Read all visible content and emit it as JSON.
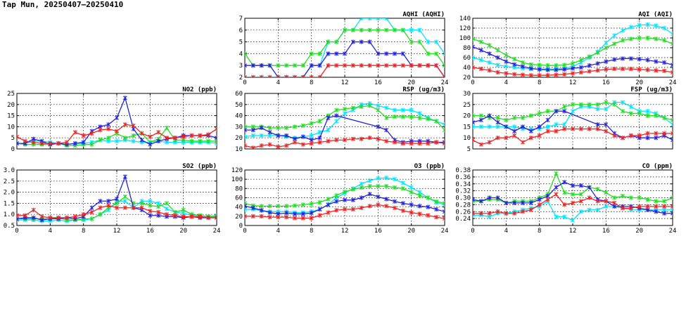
{
  "title": "Tap Mun, 20250407–20250410",
  "colors": {
    "cyan": "#00e5ff",
    "green": "#22dd22",
    "blue": "#2222dd",
    "red": "#ee2222"
  },
  "chart_data": [
    {
      "id": "aqhi",
      "type": "line",
      "title": "AQHI (AQHI)",
      "xlim": [
        0,
        24
      ],
      "xticks": [
        0,
        4,
        8,
        12,
        16,
        20,
        24
      ],
      "ylim": [
        2,
        7
      ],
      "yticks": [
        2,
        3,
        4,
        5,
        6,
        7
      ],
      "yfmt": 0,
      "show_xticks": true,
      "series": [
        {
          "name": "cyan",
          "values": [
            2,
            2,
            2,
            2,
            2,
            2,
            2,
            2,
            3,
            3,
            5,
            5,
            6,
            6,
            7,
            7,
            7,
            7,
            6,
            6,
            6,
            6,
            5,
            5,
            4
          ]
        },
        {
          "name": "green",
          "values": [
            4,
            3,
            3,
            3,
            3,
            3,
            3,
            3,
            4,
            4,
            5,
            5,
            6,
            6,
            6,
            6,
            6,
            6,
            6,
            6,
            5,
            5,
            4,
            4,
            3
          ]
        },
        {
          "name": "blue",
          "values": [
            3,
            3,
            3,
            3,
            2,
            2,
            2,
            2,
            3,
            3,
            4,
            4,
            4,
            5,
            5,
            5,
            4,
            4,
            4,
            4,
            3,
            3,
            3,
            3,
            2
          ]
        },
        {
          "name": "red",
          "values": [
            2,
            2,
            2,
            2,
            2,
            2,
            2,
            2,
            2,
            2,
            3,
            3,
            3,
            3,
            3,
            3,
            3,
            3,
            3,
            3,
            3,
            3,
            3,
            3,
            2
          ]
        }
      ]
    },
    {
      "id": "aqi",
      "type": "line",
      "title": "AQI (AQI)",
      "xlim": [
        0,
        24
      ],
      "xticks": [
        0,
        4,
        8,
        12,
        16,
        20,
        24
      ],
      "ylim": [
        20,
        140
      ],
      "yticks": [
        20,
        40,
        60,
        80,
        100,
        120,
        140
      ],
      "yfmt": 0,
      "show_xticks": true,
      "series": [
        {
          "name": "cyan",
          "values": [
            60,
            55,
            50,
            45,
            42,
            40,
            38,
            37,
            37,
            37,
            37,
            38,
            42,
            50,
            60,
            72,
            90,
            105,
            115,
            122,
            126,
            127,
            125,
            120,
            108
          ]
        },
        {
          "name": "green",
          "values": [
            98,
            92,
            85,
            75,
            65,
            57,
            50,
            46,
            45,
            44,
            44,
            45,
            48,
            55,
            62,
            70,
            80,
            88,
            95,
            98,
            100,
            100,
            98,
            95,
            88
          ]
        },
        {
          "name": "blue",
          "values": [
            82,
            75,
            68,
            60,
            52,
            46,
            42,
            38,
            36,
            35,
            35,
            36,
            38,
            40,
            44,
            48,
            52,
            56,
            58,
            58,
            57,
            55,
            52,
            50,
            45
          ]
        },
        {
          "name": "red",
          "values": [
            40,
            37,
            34,
            30,
            28,
            26,
            25,
            24,
            24,
            24,
            25,
            26,
            28,
            30,
            32,
            34,
            36,
            37,
            37,
            37,
            36,
            35,
            34,
            33,
            30
          ]
        }
      ]
    },
    {
      "id": "no2",
      "type": "line",
      "title": "NO2 (ppb)",
      "xlim": [
        0,
        24
      ],
      "xticks": [
        0,
        4,
        8,
        12,
        16,
        20,
        24
      ],
      "ylim": [
        0,
        25
      ],
      "yticks": [
        0,
        5,
        10,
        15,
        20,
        25
      ],
      "yfmt": 0,
      "show_xticks": false,
      "series": [
        {
          "name": "cyan",
          "values": [
            2.5,
            2.5,
            3.5,
            3.5,
            3,
            2.5,
            2,
            2.5,
            2.5,
            3,
            4,
            3.5,
            3.5,
            4,
            3.5,
            3,
            3,
            3.5,
            3,
            3,
            3,
            3,
            3,
            3,
            2.5
          ]
        },
        {
          "name": "green",
          "values": [
            2.5,
            2,
            2,
            2,
            2,
            2.5,
            1.5,
            1.5,
            2,
            2,
            4,
            5,
            7,
            5,
            6,
            7,
            3,
            4.5,
            9.5,
            4,
            4,
            3.5,
            3.5,
            3.5,
            3.5
          ]
        },
        {
          "name": "blue",
          "values": [
            2.5,
            2.5,
            4.5,
            3.5,
            2,
            2.5,
            2,
            2.5,
            3,
            8,
            10,
            11,
            14,
            23,
            9,
            4,
            2,
            3.5,
            4.5,
            5,
            6,
            6,
            6,
            6,
            5
          ]
        },
        {
          "name": "red",
          "values": [
            5.5,
            3.5,
            3,
            2.5,
            2.5,
            2.5,
            3,
            7.5,
            6,
            7,
            8.5,
            9,
            8,
            11,
            10.5,
            7,
            5.5,
            7.5,
            5,
            5,
            5.5,
            6,
            6,
            6.5,
            9
          ]
        }
      ]
    },
    {
      "id": "rsp",
      "type": "line",
      "title": "RSP (ug/m3)",
      "xlim": [
        0,
        24
      ],
      "xticks": [
        0,
        4,
        8,
        12,
        16,
        20,
        24
      ],
      "ylim": [
        10,
        60
      ],
      "yticks": [
        10,
        20,
        30,
        40,
        50,
        60
      ],
      "yfmt": 0,
      "show_xticks": false,
      "series": [
        {
          "name": "cyan",
          "values": [
            21,
            22,
            22,
            22,
            22,
            21,
            20,
            21,
            22,
            25,
            27,
            35,
            42,
            45,
            50,
            51,
            49,
            47,
            45,
            45,
            45,
            42,
            38,
            35,
            32
          ]
        },
        {
          "name": "green",
          "values": [
            30,
            30,
            30,
            29,
            29,
            29,
            30,
            31,
            33,
            35,
            40,
            45,
            46,
            47,
            48,
            49,
            45,
            38,
            39,
            39,
            39,
            38,
            37,
            35,
            27
          ]
        },
        {
          "name": "blue",
          "values": [
            27,
            27,
            29,
            25,
            22,
            22,
            19,
            21,
            18,
            20,
            38,
            40,
            null,
            null,
            null,
            null,
            30,
            27,
            18,
            16,
            17,
            17,
            17,
            16,
            16
          ]
        },
        {
          "name": "red",
          "values": [
            13,
            11,
            13,
            14,
            12,
            13,
            16,
            14,
            15,
            16,
            17,
            18,
            18,
            19,
            19,
            20,
            19,
            17,
            16,
            15,
            15,
            15,
            15,
            16,
            15
          ]
        }
      ]
    },
    {
      "id": "fsp",
      "type": "line",
      "title": "FSP (ug/m3)",
      "xlim": [
        0,
        24
      ],
      "xticks": [
        0,
        4,
        8,
        12,
        16,
        20,
        24
      ],
      "ylim": [
        5,
        30
      ],
      "yticks": [
        5,
        10,
        15,
        20,
        25,
        30
      ],
      "yfmt": 0,
      "show_xticks": false,
      "series": [
        {
          "name": "cyan",
          "values": [
            15,
            15,
            15,
            15,
            15,
            15,
            14,
            14,
            14,
            15,
            16,
            16,
            22,
            24,
            24,
            23,
            23,
            26,
            26,
            24,
            22,
            22,
            21,
            19,
            16
          ]
        },
        {
          "name": "green",
          "values": [
            20,
            20,
            19,
            19,
            18,
            19,
            19,
            20,
            21,
            22,
            22,
            24,
            25,
            25,
            25,
            25,
            26,
            25,
            22,
            21,
            21,
            20,
            20,
            19,
            18
          ]
        },
        {
          "name": "blue",
          "values": [
            17,
            18,
            20,
            17,
            15,
            13,
            15,
            13,
            15,
            18,
            22,
            22,
            null,
            null,
            null,
            16,
            16,
            12,
            10,
            11,
            10,
            10,
            10,
            11,
            9
          ]
        },
        {
          "name": "red",
          "values": [
            9,
            7,
            8,
            10,
            10,
            11,
            8,
            10,
            11,
            13,
            13,
            14,
            14,
            14,
            14,
            14,
            13,
            11,
            10,
            11,
            11,
            12,
            12,
            12,
            12
          ]
        }
      ]
    },
    {
      "id": "so2",
      "type": "line",
      "title": "SO2 (ppb)",
      "xlim": [
        0,
        24
      ],
      "xticks": [
        0,
        4,
        8,
        12,
        16,
        20,
        24
      ],
      "ylim": [
        0.5,
        3.0
      ],
      "yticks": [
        0.5,
        1.0,
        1.5,
        2.0,
        2.5,
        3.0
      ],
      "yfmt": 1,
      "show_xticks": true,
      "series": [
        {
          "name": "cyan",
          "values": [
            0.75,
            0.75,
            0.75,
            0.7,
            0.7,
            0.75,
            0.7,
            0.75,
            0.75,
            0.8,
            1.0,
            1.2,
            1.6,
            1.6,
            1.3,
            1.6,
            1.6,
            1.5,
            1.25,
            1.1,
            1.05,
            0.95,
            0.95,
            0.9,
            0.95
          ]
        },
        {
          "name": "green",
          "values": [
            0.8,
            0.8,
            0.8,
            0.8,
            0.8,
            0.85,
            0.75,
            0.75,
            0.8,
            0.8,
            1.0,
            1.3,
            1.5,
            1.8,
            1.5,
            1.5,
            1.4,
            1.35,
            1.5,
            1.1,
            1.2,
            1.0,
            0.95,
            0.9,
            0.9
          ]
        },
        {
          "name": "blue",
          "values": [
            0.8,
            0.85,
            0.85,
            0.75,
            0.8,
            0.8,
            0.85,
            0.8,
            0.9,
            1.3,
            1.6,
            1.6,
            1.7,
            2.7,
            1.3,
            1.2,
            0.95,
            0.95,
            0.9,
            0.9,
            0.85,
            0.9,
            0.85,
            0.85,
            0.85
          ]
        },
        {
          "name": "red",
          "values": [
            0.95,
            0.95,
            1.2,
            0.9,
            0.85,
            0.85,
            0.85,
            0.9,
            1.0,
            1.1,
            1.3,
            1.4,
            1.3,
            1.3,
            1.3,
            1.3,
            1.15,
            1.1,
            1.0,
            0.95,
            0.9,
            0.9,
            0.9,
            0.85,
            0.85
          ]
        }
      ]
    },
    {
      "id": "o3",
      "type": "line",
      "title": "O3 (ppb)",
      "xlim": [
        0,
        24
      ],
      "xticks": [
        0,
        4,
        8,
        12,
        16,
        20,
        24
      ],
      "ylim": [
        0,
        120
      ],
      "yticks": [
        0,
        20,
        40,
        60,
        80,
        100,
        120
      ],
      "yfmt": 0,
      "show_xticks": true,
      "series": [
        {
          "name": "cyan",
          "values": [
            35,
            35,
            32,
            30,
            30,
            30,
            28,
            28,
            30,
            35,
            45,
            60,
            70,
            80,
            90,
            97,
            102,
            103,
            100,
            92,
            82,
            72,
            60,
            50,
            45
          ]
        },
        {
          "name": "green",
          "values": [
            48,
            43,
            42,
            42,
            42,
            42,
            43,
            45,
            47,
            50,
            57,
            65,
            73,
            78,
            82,
            85,
            85,
            85,
            82,
            80,
            72,
            65,
            60,
            52,
            48
          ]
        },
        {
          "name": "blue",
          "values": [
            42,
            38,
            33,
            28,
            25,
            27,
            25,
            25,
            27,
            35,
            45,
            52,
            55,
            55,
            60,
            68,
            62,
            57,
            52,
            48,
            45,
            42,
            40,
            35,
            30
          ]
        },
        {
          "name": "red",
          "values": [
            20,
            20,
            20,
            18,
            18,
            18,
            16,
            16,
            16,
            22,
            28,
            33,
            35,
            35,
            38,
            42,
            45,
            42,
            38,
            32,
            28,
            25,
            22,
            18,
            15
          ]
        }
      ]
    },
    {
      "id": "co",
      "type": "line",
      "title": "CO (ppm)",
      "xlim": [
        0,
        24
      ],
      "xticks": [
        0,
        4,
        8,
        12,
        16,
        20,
        24
      ],
      "ylim": [
        0.22,
        0.38
      ],
      "yticks": [
        0.24,
        0.26,
        0.28,
        0.3,
        0.32,
        0.34,
        0.36,
        0.38
      ],
      "yfmt": 2,
      "show_xticks": true,
      "series": [
        {
          "name": "cyan",
          "values": [
            0.25,
            0.25,
            0.245,
            0.255,
            0.255,
            0.26,
            0.265,
            0.27,
            0.275,
            0.29,
            0.245,
            0.245,
            0.235,
            0.26,
            0.265,
            0.265,
            0.275,
            0.275,
            0.27,
            0.265,
            0.265,
            0.265,
            0.265,
            0.265,
            0.265
          ]
        },
        {
          "name": "green",
          "values": [
            0.29,
            0.29,
            0.295,
            0.295,
            0.285,
            0.29,
            0.29,
            0.29,
            0.3,
            0.31,
            0.37,
            0.315,
            0.31,
            0.31,
            0.33,
            0.325,
            0.315,
            0.3,
            0.305,
            0.3,
            0.3,
            0.295,
            0.29,
            0.29,
            0.3
          ]
        },
        {
          "name": "blue",
          "values": [
            0.295,
            0.29,
            0.3,
            0.3,
            0.285,
            0.285,
            0.285,
            0.285,
            0.295,
            0.305,
            0.33,
            0.345,
            0.335,
            0.335,
            0.33,
            0.295,
            0.29,
            0.275,
            0.275,
            0.275,
            0.27,
            0.265,
            0.26,
            0.255,
            0.255
          ]
        },
        {
          "name": "red",
          "values": [
            0.255,
            0.255,
            0.255,
            0.26,
            0.255,
            0.255,
            0.26,
            0.265,
            0.28,
            0.295,
            0.31,
            0.28,
            0.285,
            0.29,
            0.3,
            0.29,
            0.29,
            0.285,
            0.27,
            0.27,
            0.275,
            0.275,
            0.275,
            0.275,
            0.275
          ]
        }
      ]
    }
  ]
}
